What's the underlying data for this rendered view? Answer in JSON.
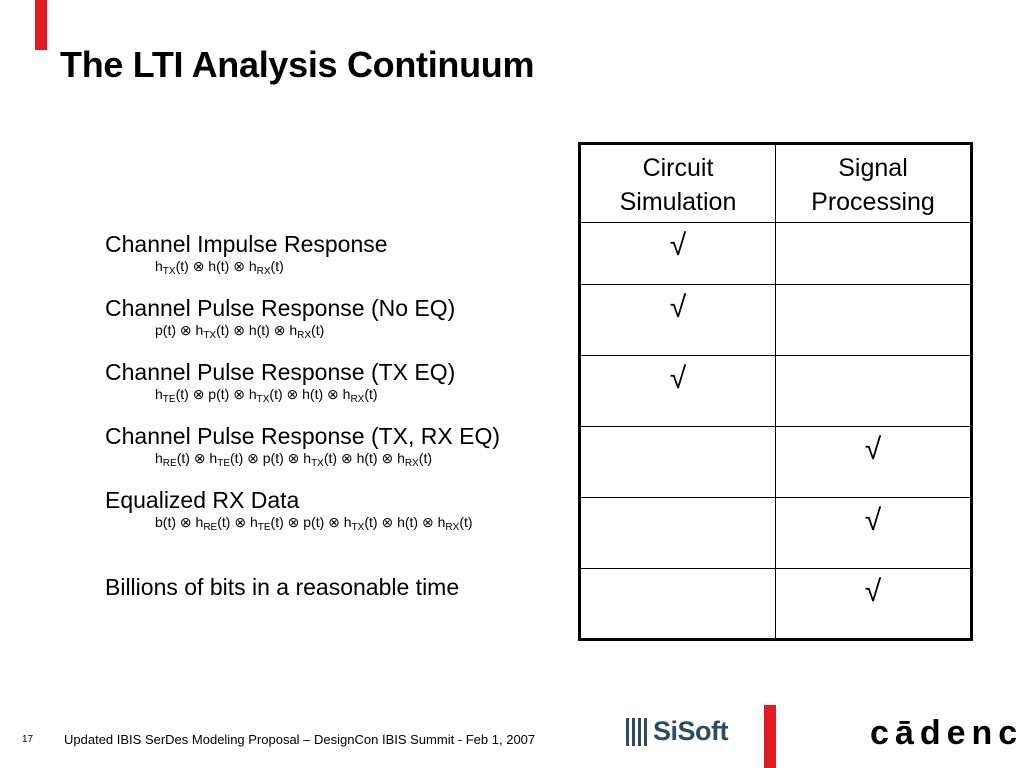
{
  "slide": {
    "title": "The LTI Analysis Continuum",
    "page_number": "17",
    "footer": "Updated IBIS SerDes Modeling Proposal – DesignCon IBIS Summit - Feb 1, 2007"
  },
  "items": [
    {
      "title": "Channel Impulse Response",
      "formula": [
        [
          "h",
          "TX",
          "(t) "
        ],
        [
          "⊗",
          "",
          " h(t) "
        ],
        [
          "⊗",
          "",
          " h"
        ],
        [
          "",
          "RX",
          "(t)"
        ]
      ]
    },
    {
      "title": "Channel Pulse Response (No EQ)",
      "formula": [
        [
          "p(t) ",
          "",
          ""
        ],
        [
          "⊗",
          "",
          " h"
        ],
        [
          "",
          "TX",
          "(t) "
        ],
        [
          "⊗",
          "",
          " h(t) "
        ],
        [
          "⊗",
          "",
          " h"
        ],
        [
          "",
          "RX",
          "(t)"
        ]
      ]
    },
    {
      "title": "Channel Pulse Response (TX EQ)",
      "formula": [
        [
          "h",
          "TE",
          "(t) "
        ],
        [
          "⊗",
          "",
          " p(t) "
        ],
        [
          "⊗",
          "",
          " h"
        ],
        [
          "",
          "TX",
          "(t) "
        ],
        [
          "⊗",
          "",
          " h(t) "
        ],
        [
          "⊗",
          "",
          " h"
        ],
        [
          "",
          "RX",
          "(t)"
        ]
      ]
    },
    {
      "title": "Channel Pulse Response (TX, RX EQ)",
      "formula": [
        [
          "h",
          "RE",
          "(t) "
        ],
        [
          "⊗",
          "",
          " h"
        ],
        [
          "",
          "TE",
          "(t) "
        ],
        [
          "⊗",
          "",
          " p(t) "
        ],
        [
          "⊗",
          "",
          " h"
        ],
        [
          "",
          "TX",
          "(t) "
        ],
        [
          "⊗",
          "",
          " h(t) "
        ],
        [
          "⊗",
          "",
          " h"
        ],
        [
          "",
          "RX",
          "(t)"
        ]
      ]
    },
    {
      "title": "Equalized RX Data",
      "formula": [
        [
          "b(t) ",
          "",
          ""
        ],
        [
          "⊗",
          "",
          " h"
        ],
        [
          "",
          "RE",
          "(t) "
        ],
        [
          "⊗",
          "",
          " h"
        ],
        [
          "",
          "TE",
          "(t) "
        ],
        [
          "⊗",
          "",
          " p(t) "
        ],
        [
          "⊗",
          "",
          " h"
        ],
        [
          "",
          "TX",
          "(t) "
        ],
        [
          "⊗",
          "",
          " h(t) "
        ],
        [
          "⊗",
          "",
          " h"
        ],
        [
          "",
          "RX",
          "(t)"
        ]
      ]
    },
    {
      "title": "Billions of bits in a reasonable time",
      "formula": []
    }
  ],
  "table": {
    "headers": [
      "Circuit\nSimulation",
      "Signal\nProcessing"
    ],
    "check_symbol": "√",
    "rows": [
      [
        "√",
        ""
      ],
      [
        "√",
        ""
      ],
      [
        "√",
        ""
      ],
      [
        "",
        "√"
      ],
      [
        "",
        "√"
      ],
      [
        "",
        "√"
      ]
    ]
  },
  "logos": {
    "sisoft": "SiSoft",
    "cadence": "cādence",
    "cadence_tm": "™"
  },
  "colors": {
    "accent_red": "#e31b23",
    "sisoft_blue": "#2d4a66"
  }
}
